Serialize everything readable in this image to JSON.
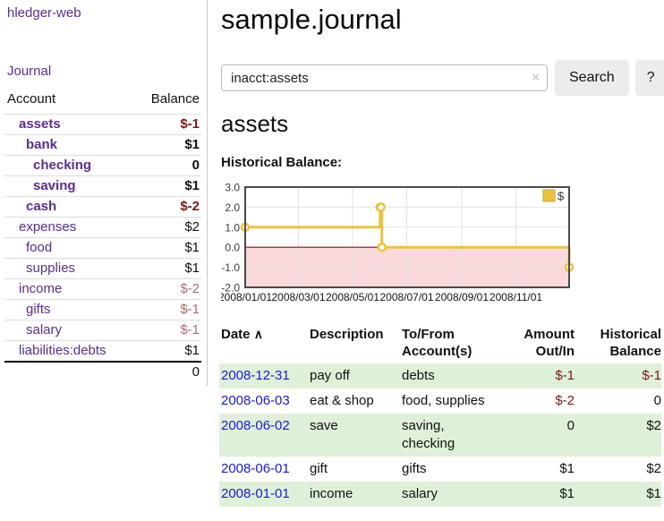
{
  "app": {
    "brand": "hledger-web"
  },
  "colors": {
    "link_purple": "#5c2d91",
    "link_blue": "#1a1ad6",
    "negative_red": "#7f1616",
    "negative_dim_red": "#b06a70",
    "row_stripe_green": "#dff0d8",
    "series_gold": "#edc240",
    "negative_region_pink": "#f9d9d9",
    "zero_line_dark_red": "#8f0e0e"
  },
  "sidebar": {
    "nav_journal": "Journal",
    "accounts": {
      "col_account": "Account",
      "col_balance": "Balance",
      "rows": [
        {
          "name": "assets",
          "depth": 1,
          "bold": true,
          "balance": "$-1",
          "balance_style": "neg"
        },
        {
          "name": "bank",
          "depth": 2,
          "bold": true,
          "balance": "$1",
          "balance_style": "pos"
        },
        {
          "name": "checking",
          "depth": 3,
          "bold": true,
          "balance": "0",
          "balance_style": "pos"
        },
        {
          "name": "saving",
          "depth": 3,
          "bold": true,
          "balance": "$1",
          "balance_style": "pos"
        },
        {
          "name": "cash",
          "depth": 2,
          "bold": true,
          "balance": "$-2",
          "balance_style": "neg"
        },
        {
          "name": "expenses",
          "depth": 1,
          "bold": false,
          "balance": "$2",
          "balance_style": "pos"
        },
        {
          "name": "food",
          "depth": 2,
          "bold": false,
          "balance": "$1",
          "balance_style": "pos"
        },
        {
          "name": "supplies",
          "depth": 2,
          "bold": false,
          "balance": "$1",
          "balance_style": "pos"
        },
        {
          "name": "income",
          "depth": 1,
          "bold": false,
          "balance": "$-2",
          "balance_style": "neg-dim"
        },
        {
          "name": "gifts",
          "depth": 2,
          "bold": false,
          "balance": "$-1",
          "balance_style": "neg-dim"
        },
        {
          "name": "salary",
          "depth": 2,
          "bold": false,
          "balance": "$-1",
          "balance_style": "neg-dim",
          "link_style": "blue"
        },
        {
          "name": "liabilities:debts",
          "depth": 1,
          "bold": false,
          "balance": "$1",
          "balance_style": "pos"
        }
      ],
      "total": "0"
    }
  },
  "main": {
    "title": "sample.journal",
    "search": {
      "value": "inacct:assets",
      "clear_icon": "×",
      "button": "Search",
      "help": "?"
    },
    "account_heading": "assets",
    "chart_title": "Historical Balance:"
  },
  "chart_data": {
    "type": "line",
    "title": "Historical Balance",
    "step": true,
    "x_range": [
      "2008-01-01",
      "2008-12-31"
    ],
    "ylim": [
      -2,
      3
    ],
    "yticks": [
      {
        "value": 3,
        "label": "3.0"
      },
      {
        "value": 2,
        "label": "2.0"
      },
      {
        "value": 1,
        "label": "1.0"
      },
      {
        "value": 0,
        "label": "0.0"
      },
      {
        "value": -1,
        "label": "-1.0"
      },
      {
        "value": -2,
        "label": "-2.0"
      }
    ],
    "xticks": [
      {
        "date": "2008-01-01",
        "label": "2008/01/01"
      },
      {
        "date": "2008-03-01",
        "label": "2008/03/01"
      },
      {
        "date": "2008-05-01",
        "label": "2008/05/01"
      },
      {
        "date": "2008-07-01",
        "label": "2008/07/01"
      },
      {
        "date": "2008-09-01",
        "label": "2008/09/01"
      },
      {
        "date": "2008-11-01",
        "label": "2008/11/01"
      }
    ],
    "grid": true,
    "legend_position": "top-right",
    "negative_region_shaded": true,
    "series": [
      {
        "name": "$",
        "color": "#edc240",
        "points": [
          {
            "x": "2008-01-01",
            "y": 1
          },
          {
            "x": "2008-06-01",
            "y": 2
          },
          {
            "x": "2008-06-02",
            "y": 2
          },
          {
            "x": "2008-06-03",
            "y": 0
          },
          {
            "x": "2008-12-31",
            "y": -1
          }
        ]
      }
    ]
  },
  "register": {
    "headers": {
      "date": "Date",
      "sort_icon": "∧",
      "description": "Description",
      "accounts_line1": "To/From",
      "accounts_line2": "Account(s)",
      "amount_line1": "Amount",
      "amount_line2": "Out/In",
      "balance_line1": "Historical",
      "balance_line2": "Balance"
    },
    "rows": [
      {
        "date": "2008-12-31",
        "description": "pay off",
        "accounts": [
          "debts"
        ],
        "amount": "$-1",
        "amount_negative": true,
        "balance": "$-1",
        "balance_negative": true,
        "shaded": true
      },
      {
        "date": "2008-06-03",
        "description": "eat & shop",
        "accounts": [
          "food, supplies"
        ],
        "amount": "$-2",
        "amount_negative": true,
        "balance": "0",
        "balance_negative": false,
        "shaded": false
      },
      {
        "date": "2008-06-02",
        "description": "save",
        "accounts": [
          "saving,",
          "checking"
        ],
        "amount": "0",
        "amount_negative": false,
        "balance": "$2",
        "balance_negative": false,
        "shaded": true
      },
      {
        "date": "2008-06-01",
        "description": "gift",
        "accounts": [
          "gifts"
        ],
        "amount": "$1",
        "amount_negative": false,
        "balance": "$2",
        "balance_negative": false,
        "shaded": false
      },
      {
        "date": "2008-01-01",
        "description": "income",
        "accounts": [
          "salary"
        ],
        "amount": "$1",
        "amount_negative": false,
        "balance": "$1",
        "balance_negative": false,
        "shaded": true
      }
    ]
  }
}
